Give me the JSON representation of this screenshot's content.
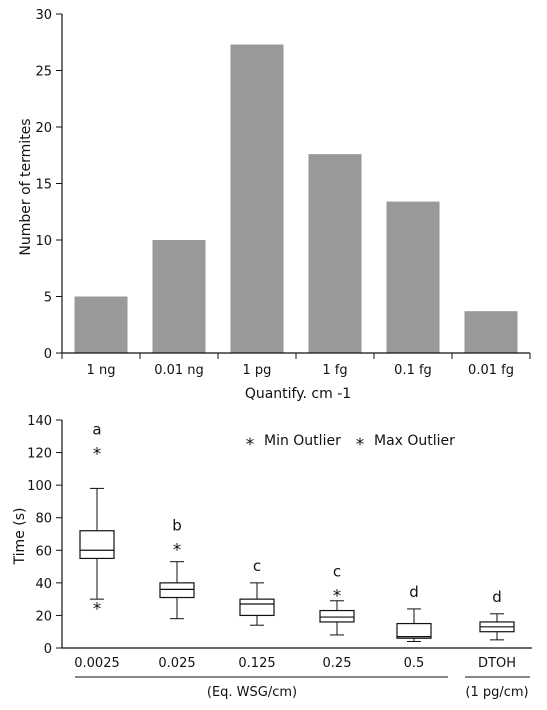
{
  "colors": {
    "bar": "#999999",
    "axis": "#111111",
    "box": "#111111"
  },
  "chart_data": [
    {
      "type": "bar",
      "categories": [
        "1 ng",
        "0.01 ng",
        "1 pg",
        "1 fg",
        "0.1 fg",
        "0.01 fg"
      ],
      "values": [
        5,
        10,
        27.3,
        17.6,
        13.4,
        3.7
      ],
      "xlabel": "Quantify. cm -1",
      "ylabel": "Number of termites",
      "ylim": [
        0,
        30
      ],
      "yticks": [
        "0",
        "5",
        "10",
        "15",
        "20",
        "25",
        "30"
      ],
      "grid": false
    },
    {
      "type": "box",
      "categories": [
        "0.0025",
        "0.025",
        "0.125",
        "0.25",
        "0.5",
        "DTOH"
      ],
      "boxes": [
        {
          "whisker_low": 30,
          "q1": 55,
          "median": 60,
          "q3": 72,
          "whisker_high": 98,
          "outliers_low": [
            25
          ],
          "outliers_high": [
            120
          ],
          "letter": "a"
        },
        {
          "whisker_low": 18,
          "q1": 31,
          "median": 36,
          "q3": 40,
          "whisker_high": 53,
          "outliers_low": [],
          "outliers_high": [
            61
          ],
          "letter": "b"
        },
        {
          "whisker_low": 14,
          "q1": 20,
          "median": 27,
          "q3": 30,
          "whisker_high": 40,
          "outliers_low": [],
          "outliers_high": [],
          "letter": "c"
        },
        {
          "whisker_low": 8,
          "q1": 16,
          "median": 19,
          "q3": 23,
          "whisker_high": 29,
          "outliers_low": [],
          "outliers_high": [
            33
          ],
          "letter": "c"
        },
        {
          "whisker_low": 4,
          "q1": 6,
          "median": 7,
          "q3": 15,
          "whisker_high": 24,
          "outliers_low": [],
          "outliers_high": [],
          "letter": "d"
        },
        {
          "whisker_low": 5,
          "q1": 10,
          "median": 13,
          "q3": 16,
          "whisker_high": 21,
          "outliers_low": [],
          "outliers_high": [],
          "letter": "d"
        }
      ],
      "ylabel": "Time (s)",
      "ylim": [
        0,
        140
      ],
      "yticks": [
        "0",
        "20",
        "40",
        "60",
        "80",
        "100",
        "120",
        "140"
      ],
      "legend": {
        "placement": "top-right",
        "marker": "*",
        "items": [
          "Min Outlier",
          "Max Outlier"
        ]
      },
      "group_labels": [
        "(Eq. WSG/cm)",
        "(1 pg/cm)"
      ],
      "grid": false
    }
  ]
}
